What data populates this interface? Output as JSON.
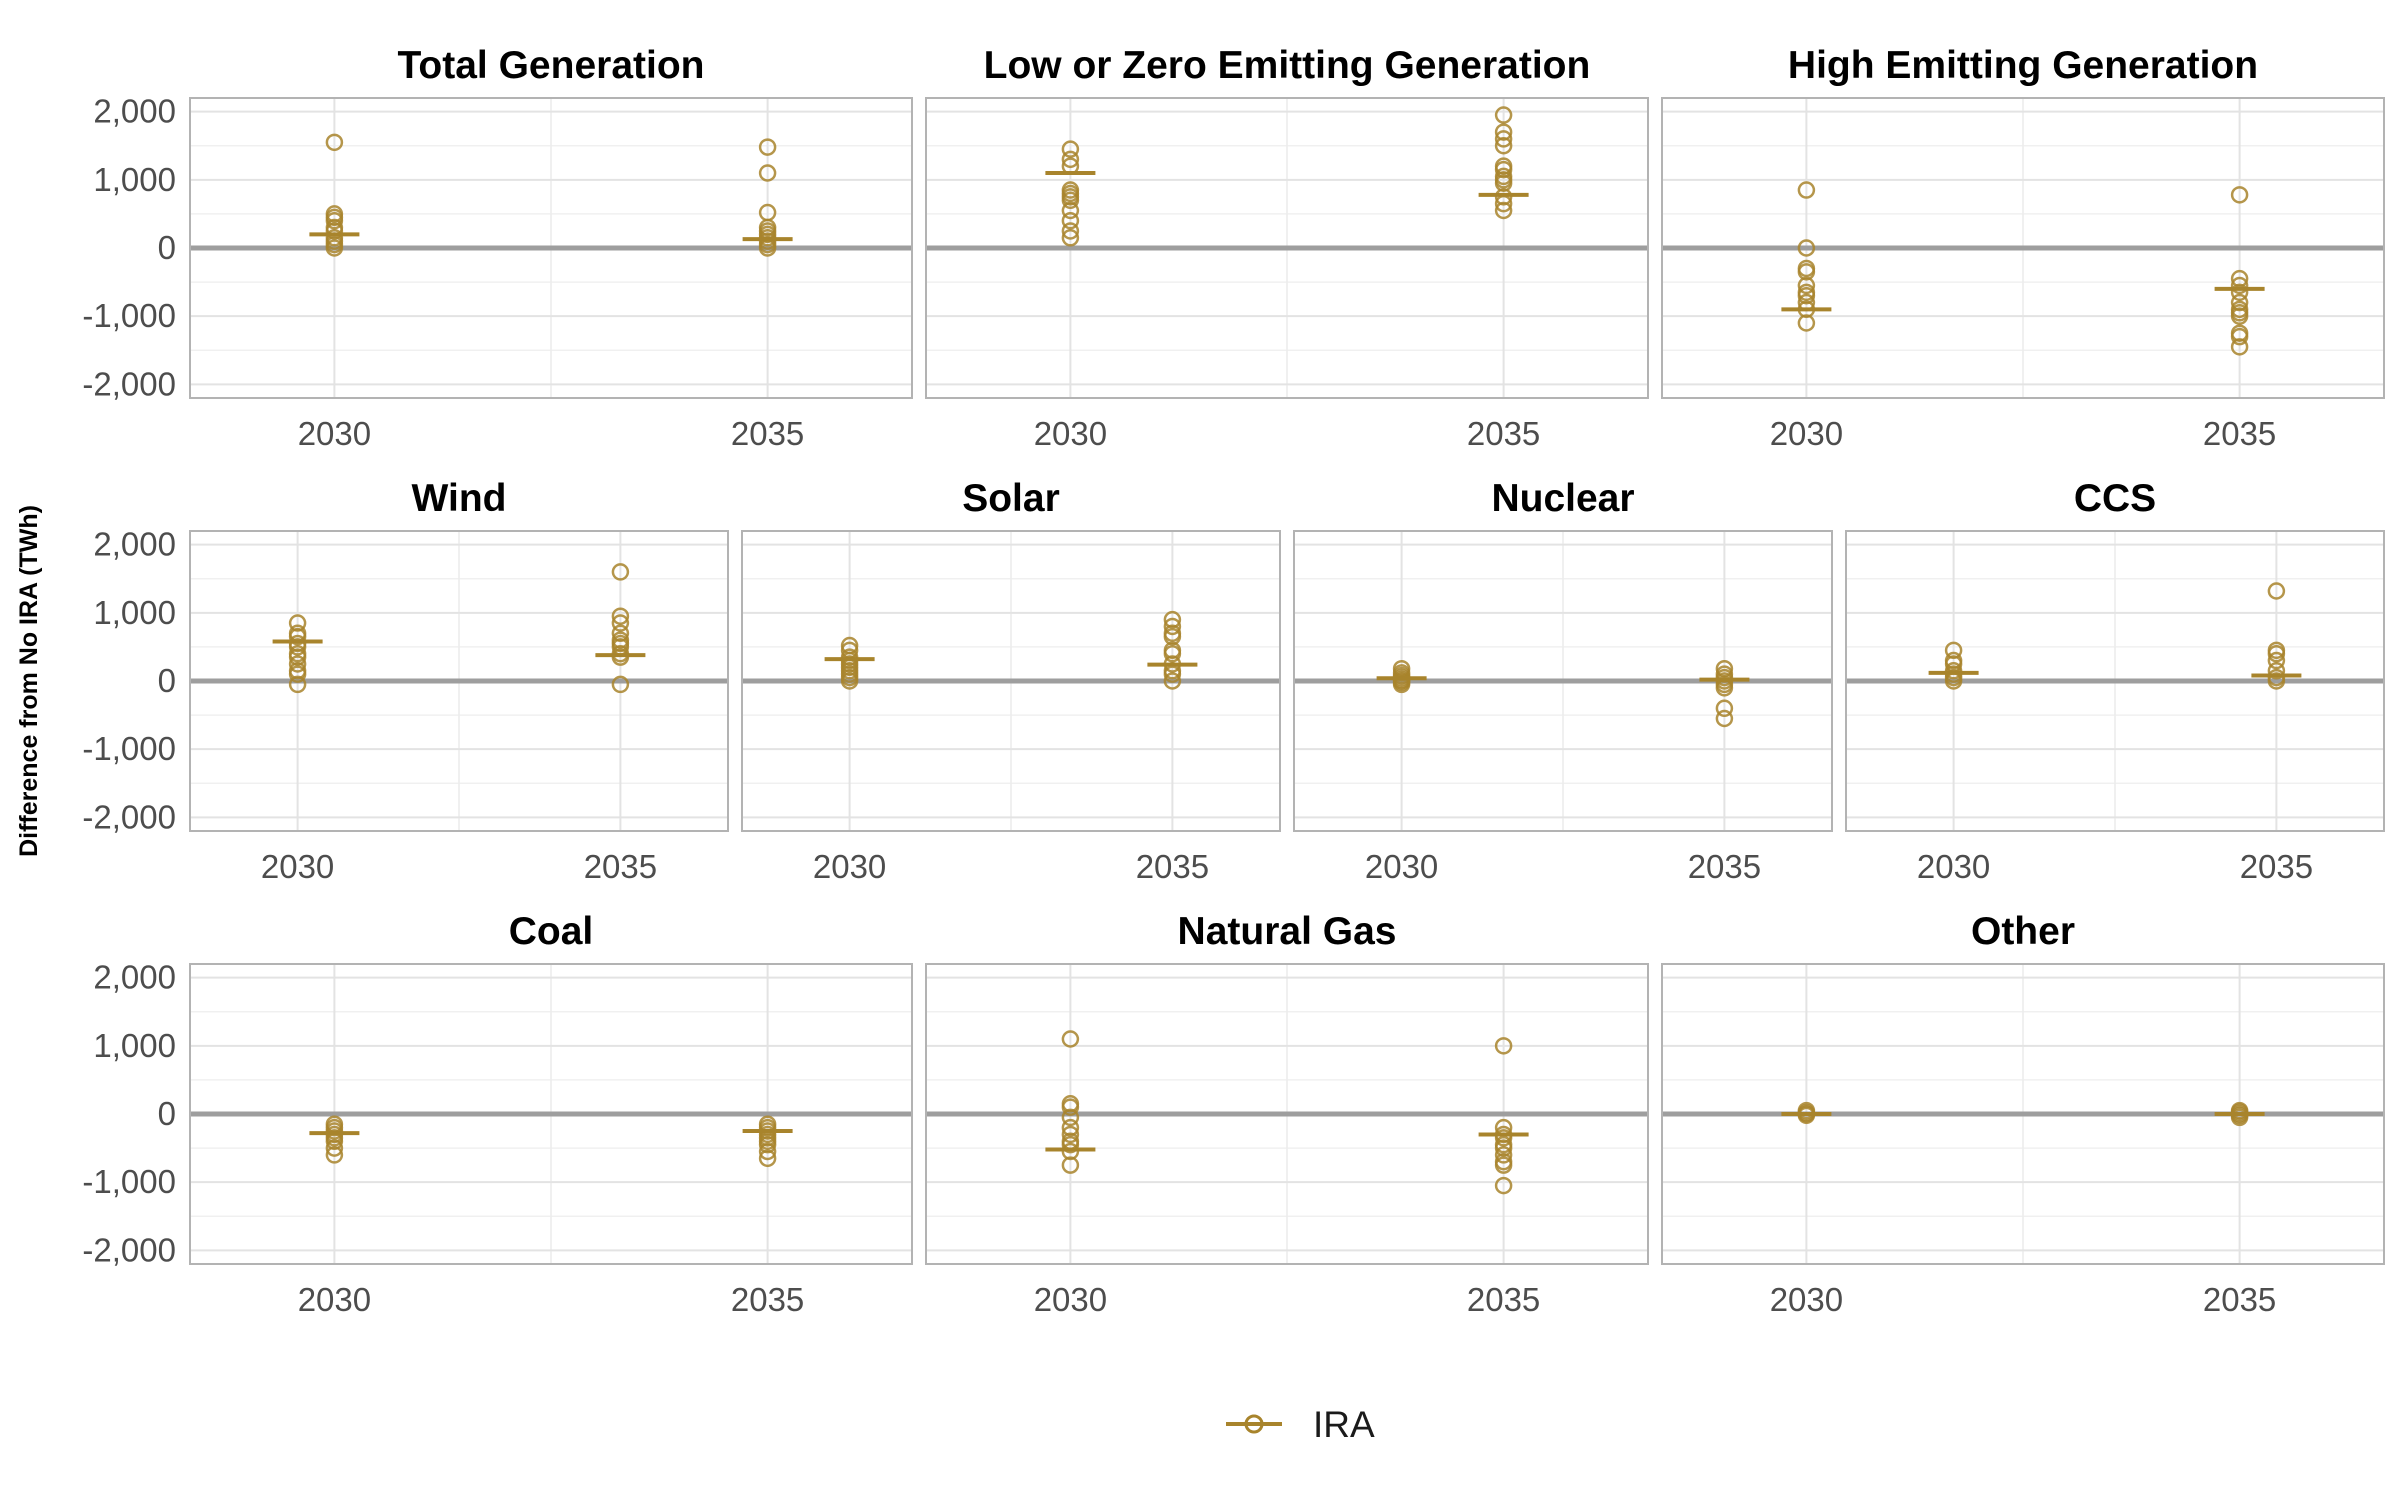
{
  "chart_data": {
    "type": "scatter",
    "ylabel": "Difference from No IRA (TWh)",
    "ylim": [
      -2200,
      2200
    ],
    "y_ticks": [
      2000,
      1000,
      0,
      -1000,
      -2000
    ],
    "y_tick_labels": [
      "2,000",
      "1,000",
      "0",
      "-1,000",
      "-2,000"
    ],
    "x_categories": [
      "2030",
      "2035"
    ],
    "series_color": "#a8842c",
    "zero_line_color": "#9e9e9e",
    "grid": true,
    "legend": {
      "position": "bottom",
      "entries": [
        {
          "label": "IRA",
          "marker": "circle-with-line"
        }
      ]
    },
    "panels": [
      {
        "title": "Total Generation",
        "points": {
          "2030": [
            1550,
            500,
            450,
            400,
            300,
            250,
            150,
            100,
            50,
            0
          ],
          "2035": [
            1480,
            1100,
            520,
            300,
            250,
            200,
            150,
            100,
            50,
            0
          ]
        },
        "median": {
          "2030": 200,
          "2035": 130
        }
      },
      {
        "title": "Low or Zero Emitting Generation",
        "points": {
          "2030": [
            1450,
            1300,
            1200,
            850,
            800,
            750,
            700,
            550,
            400,
            250,
            150
          ],
          "2035": [
            1950,
            1700,
            1600,
            1500,
            1200,
            1150,
            1050,
            1000,
            950,
            750,
            650,
            550
          ]
        },
        "median": {
          "2030": 1100,
          "2035": 780
        }
      },
      {
        "title": "High Emitting Generation",
        "points": {
          "2030": [
            850,
            0,
            -300,
            -350,
            -550,
            -650,
            -700,
            -800,
            -900,
            -1100
          ],
          "2035": [
            780,
            -450,
            -550,
            -650,
            -800,
            -900,
            -950,
            -1000,
            -1250,
            -1300,
            -1450
          ]
        },
        "median": {
          "2030": -900,
          "2035": -600
        }
      },
      {
        "title": "Wind",
        "points": {
          "2030": [
            850,
            700,
            650,
            550,
            500,
            400,
            350,
            250,
            150,
            100,
            -50
          ],
          "2035": [
            1600,
            950,
            850,
            700,
            600,
            550,
            500,
            400,
            350,
            -50
          ]
        },
        "median": {
          "2030": 580,
          "2035": 380
        }
      },
      {
        "title": "Solar",
        "points": {
          "2030": [
            520,
            450,
            350,
            300,
            250,
            200,
            150,
            100,
            50,
            0
          ],
          "2035": [
            900,
            800,
            700,
            650,
            450,
            400,
            250,
            150,
            100,
            0
          ]
        },
        "median": {
          "2030": 320,
          "2035": 240
        }
      },
      {
        "title": "Nuclear",
        "points": {
          "2030": [
            180,
            120,
            80,
            50,
            20,
            0,
            -20,
            -50
          ],
          "2035": [
            180,
            100,
            50,
            0,
            -50,
            -100,
            -400,
            -550
          ]
        },
        "median": {
          "2030": 40,
          "2035": 20
        }
      },
      {
        "title": "CCS",
        "points": {
          "2030": [
            450,
            300,
            250,
            150,
            100,
            50,
            0
          ],
          "2035": [
            1320,
            450,
            400,
            300,
            150,
            50,
            0
          ]
        },
        "median": {
          "2030": 120,
          "2035": 80
        }
      },
      {
        "title": "Coal",
        "points": {
          "2030": [
            -150,
            -200,
            -250,
            -300,
            -350,
            -400,
            -500,
            -600
          ],
          "2035": [
            -150,
            -200,
            -250,
            -300,
            -350,
            -400,
            -450,
            -550,
            -650
          ]
        },
        "median": {
          "2030": -280,
          "2035": -250
        }
      },
      {
        "title": "Natural Gas",
        "points": {
          "2030": [
            1100,
            150,
            100,
            -50,
            -200,
            -300,
            -400,
            -450,
            -550,
            -750
          ],
          "2035": [
            1000,
            -200,
            -300,
            -350,
            -450,
            -500,
            -600,
            -700,
            -750,
            -1050
          ]
        },
        "median": {
          "2030": -520,
          "2035": -300
        }
      },
      {
        "title": "Other",
        "points": {
          "2030": [
            50,
            20,
            0,
            -20
          ],
          "2035": [
            50,
            30,
            0,
            -20,
            -50
          ]
        },
        "median": {
          "2030": 0,
          "2035": 0
        }
      }
    ]
  }
}
